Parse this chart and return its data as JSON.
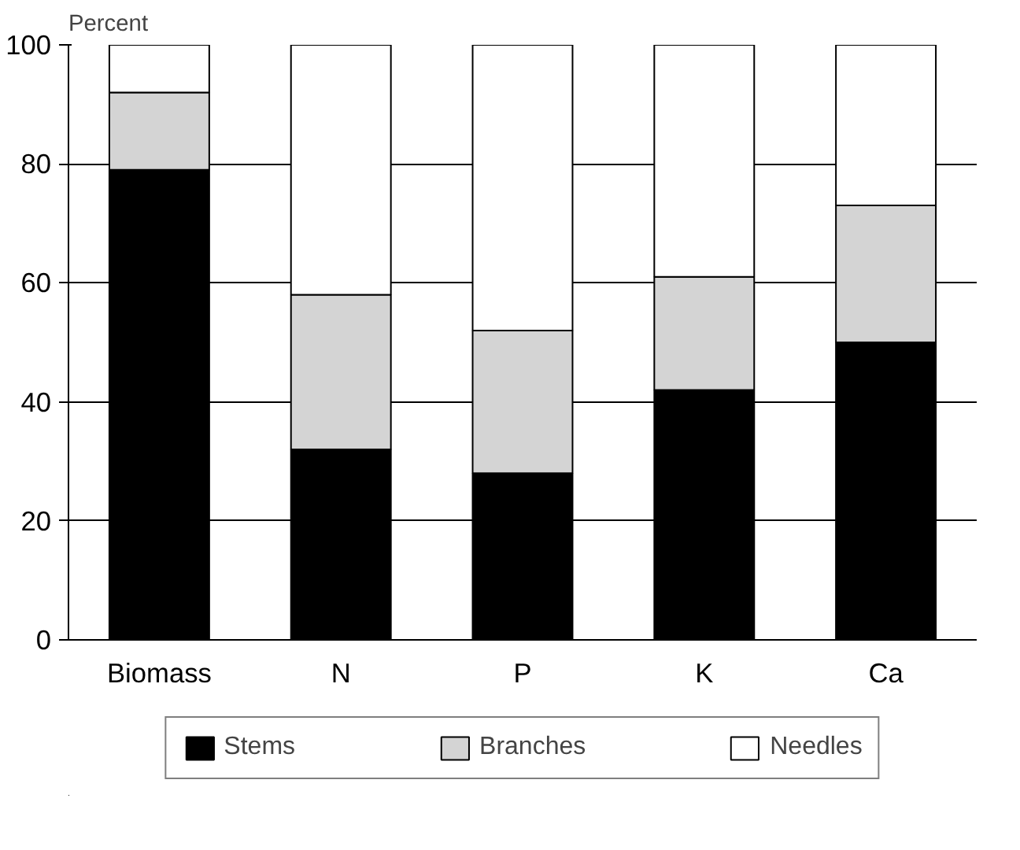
{
  "chart_data": {
    "type": "bar",
    "stacked": true,
    "ylabel": "Percent",
    "categories": [
      "Biomass",
      "N",
      "P",
      "K",
      "Ca"
    ],
    "series": [
      {
        "name": "Stems",
        "color": "#000000",
        "values": [
          79,
          32,
          28,
          42,
          50
        ]
      },
      {
        "name": "Branches",
        "color": "#d4d4d4",
        "values": [
          13,
          26,
          24,
          19,
          23
        ]
      },
      {
        "name": "Needles",
        "color": "#ffffff",
        "values": [
          8,
          42,
          48,
          39,
          27
        ]
      }
    ],
    "ylim": [
      0,
      100
    ],
    "yticks": [
      0,
      20,
      40,
      60,
      80,
      100
    ],
    "grid": "y",
    "legend": "bottom"
  }
}
